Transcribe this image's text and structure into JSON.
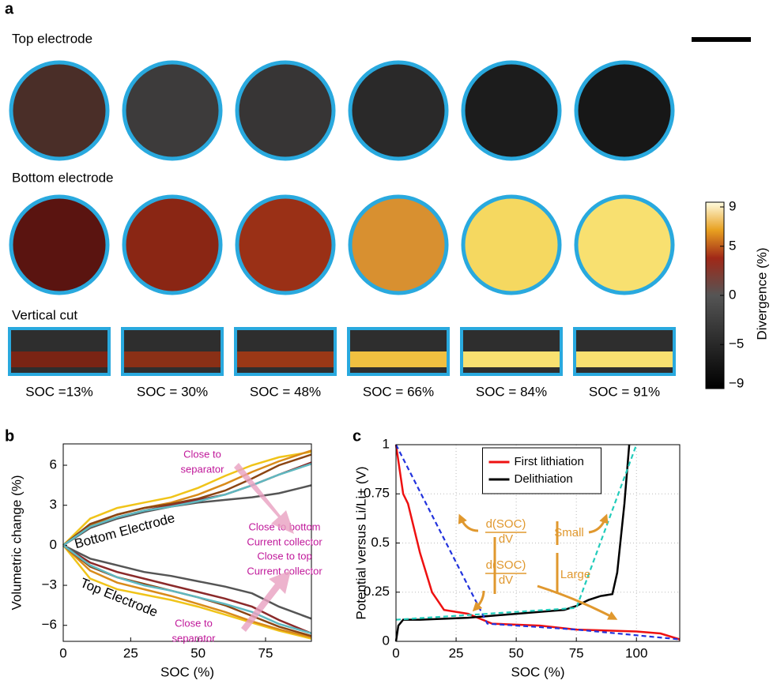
{
  "panel_labels": [
    "a",
    "b",
    "c"
  ],
  "panel_a": {
    "row_labels": [
      "Top electrode",
      "Bottom electrode",
      "Vertical cut"
    ],
    "soc_labels": [
      "SOC =13%",
      "SOC = 30%",
      "SOC = 48%",
      "SOC = 66%",
      "SOC = 84%",
      "SOC = 91%"
    ],
    "colorbar": {
      "label": "Divergence (%)",
      "lim": [
        -9,
        9
      ],
      "ticks": [
        9,
        5,
        0,
        {
          "value": -5,
          "label": "−5"
        },
        {
          "value": -9,
          "label": "−9"
        }
      ]
    }
  },
  "chart_data": [
    {
      "type": "line",
      "xlabel": "SOC (%)",
      "ylabel": "Volumetric change (%)",
      "xlim": [
        0,
        92
      ],
      "ylim": [
        -7.2,
        7.6
      ],
      "xticks": [
        0,
        25,
        50,
        75
      ],
      "yticks": [
        {
          "value": -6,
          "label": "−6"
        },
        {
          "value": -3,
          "label": "−3"
        },
        0,
        3,
        6
      ],
      "grid": false,
      "x": [
        0,
        10,
        20,
        30,
        40,
        50,
        60,
        70,
        80,
        92
      ],
      "series": [
        {
          "color": "#f0c419",
          "values": [
            0,
            2.0,
            2.8,
            3.2,
            3.6,
            4.3,
            5.2,
            6.0,
            6.6,
            7.0
          ]
        },
        {
          "color": "#d98b1a",
          "values": [
            0,
            1.5,
            2.3,
            2.8,
            3.2,
            3.8,
            4.6,
            5.5,
            6.3,
            7.1
          ]
        },
        {
          "color": "#8b4513",
          "values": [
            0,
            1.6,
            2.3,
            2.8,
            3.1,
            3.5,
            4.1,
            5.0,
            6.0,
            6.8
          ]
        },
        {
          "color": "#8b2a2a",
          "values": [
            0,
            1.4,
            2.1,
            2.6,
            3.0,
            3.4,
            3.8,
            4.5,
            5.3,
            6.2
          ]
        },
        {
          "color": "#555555",
          "values": [
            0,
            1.3,
            2.0,
            2.5,
            2.9,
            3.2,
            3.4,
            3.6,
            3.9,
            4.5
          ]
        },
        {
          "color": "#5fb8c0",
          "values": [
            0,
            1.4,
            2.1,
            2.6,
            2.9,
            3.3,
            3.8,
            4.5,
            5.3,
            6.1
          ]
        },
        {
          "color": "#f0c419",
          "values": [
            0,
            -2.5,
            -3.3,
            -3.7,
            -4.1,
            -4.6,
            -5.2,
            -5.8,
            -6.4,
            -7.0
          ]
        },
        {
          "color": "#d98b1a",
          "values": [
            0,
            -1.9,
            -2.8,
            -3.3,
            -3.8,
            -4.4,
            -5.0,
            -5.7,
            -6.3,
            -6.9
          ]
        },
        {
          "color": "#8b4513",
          "values": [
            0,
            -1.6,
            -2.4,
            -2.9,
            -3.4,
            -3.9,
            -4.5,
            -5.3,
            -6.1,
            -6.8
          ]
        },
        {
          "color": "#8b2a2a",
          "values": [
            0,
            -1.3,
            -2.0,
            -2.5,
            -3.0,
            -3.5,
            -4.0,
            -4.6,
            -5.6,
            -6.6
          ]
        },
        {
          "color": "#555555",
          "values": [
            0,
            -1.0,
            -1.5,
            -2.0,
            -2.3,
            -2.7,
            -3.1,
            -3.6,
            -4.6,
            -5.5
          ]
        },
        {
          "color": "#5fb8c0",
          "values": [
            0,
            -1.5,
            -2.4,
            -3.0,
            -3.4,
            -3.9,
            -4.4,
            -5.0,
            -5.9,
            -6.6
          ]
        }
      ],
      "annotations": [
        {
          "lines": [
            "Bottom Electrode"
          ]
        },
        {
          "lines": [
            "Top Electrode"
          ]
        },
        {
          "lines": [
            "Close to",
            "separator"
          ]
        },
        {
          "lines": [
            "Close to bottom",
            "Current collector"
          ]
        },
        {
          "lines": [
            "Close to top",
            "Current collector"
          ]
        },
        {
          "lines": [
            "Close to",
            "separator"
          ]
        }
      ]
    },
    {
      "type": "line",
      "xlabel": "SOC (%)",
      "ylabel": "Potential versus Li/Li+ (V)",
      "xlim": [
        0,
        118
      ],
      "ylim": [
        0,
        1
      ],
      "xticks": [
        0,
        25,
        50,
        75,
        100
      ],
      "yticks": [
        0,
        0.25,
        0.5,
        0.75,
        1
      ],
      "grid": true,
      "legend": "upper center",
      "series": [
        {
          "name": "First lithiation",
          "color": "#ee1111",
          "x": [
            0,
            3,
            5,
            10,
            15,
            20,
            30,
            40,
            60,
            75,
            100,
            110,
            118
          ],
          "values": [
            1,
            0.75,
            0.7,
            0.45,
            0.25,
            0.16,
            0.14,
            0.09,
            0.08,
            0.06,
            0.05,
            0.04,
            0.01
          ]
        },
        {
          "name": "Delithiation",
          "color": "#000000",
          "x": [
            0,
            1,
            3,
            10,
            30,
            50,
            70,
            75,
            80,
            85,
            90,
            92,
            95,
            97
          ],
          "values": [
            0,
            0.08,
            0.11,
            0.11,
            0.12,
            0.14,
            0.16,
            0.18,
            0.21,
            0.23,
            0.24,
            0.35,
            0.7,
            1
          ]
        },
        {
          "color": "#2233dd",
          "dash": true,
          "x": [
            0,
            38,
            75,
            118
          ],
          "values": [
            1,
            0.09,
            0.06,
            0.01
          ]
        },
        {
          "color": "#22ccbb",
          "dash": true,
          "x": [
            0,
            75,
            100
          ],
          "values": [
            0.11,
            0.17,
            1
          ]
        }
      ],
      "annotations": [
        {
          "lines": [
            "d(SOC)",
            "dV"
          ]
        },
        {
          "lines": [
            "Small"
          ]
        },
        {
          "lines": [
            "d(SOC)",
            "dV"
          ]
        },
        {
          "lines": [
            "Large"
          ]
        }
      ]
    }
  ]
}
